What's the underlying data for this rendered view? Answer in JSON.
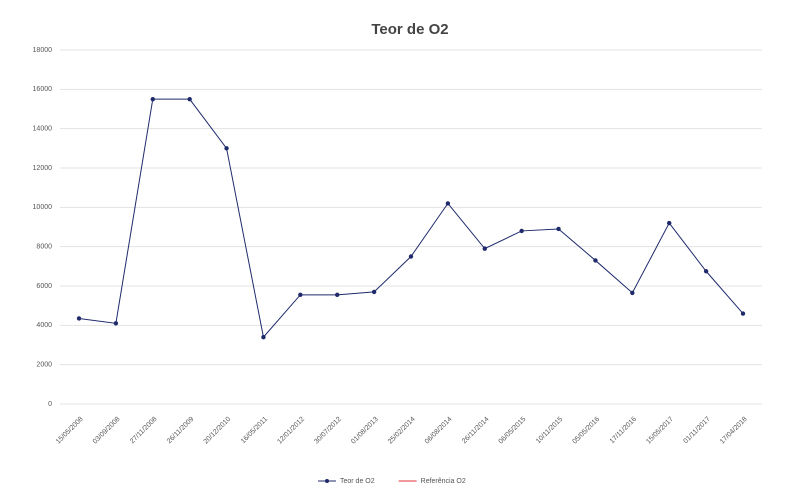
{
  "chart_data": {
    "type": "line",
    "title": "Teor de O2",
    "categories": [
      "15/05/2008",
      "03/09/2008",
      "27/11/2008",
      "26/11/2009",
      "20/12/2010",
      "16/05/2011",
      "12/01/2012",
      "30/07/2012",
      "01/08/2013",
      "25/02/2014",
      "06/08/2014",
      "26/11/2014",
      "06/05/2015",
      "10/11/2015",
      "05/05/2016",
      "17/11/2016",
      "15/05/2017",
      "01/11/2017",
      "17/04/2018"
    ],
    "series": [
      {
        "name": "Teor de O2",
        "color": "#1f2a6b",
        "values": [
          4350,
          4100,
          15500,
          15500,
          13000,
          3400,
          5550,
          5550,
          5700,
          7500,
          10200,
          7900,
          8800,
          8900,
          7300,
          5650,
          9200,
          6750,
          4600
        ]
      },
      {
        "name": "Referência O2",
        "color": "#e0303a",
        "values": [
          null,
          null,
          null,
          null,
          null,
          null,
          null,
          null,
          null,
          null,
          null,
          null,
          null,
          null,
          null,
          null,
          null,
          null,
          null
        ]
      }
    ],
    "ylim": [
      0,
      18000
    ],
    "yticks": [
      0,
      2000,
      4000,
      6000,
      8000,
      10000,
      12000,
      14000,
      16000,
      18000
    ],
    "grid": true,
    "legend": "bottom"
  }
}
